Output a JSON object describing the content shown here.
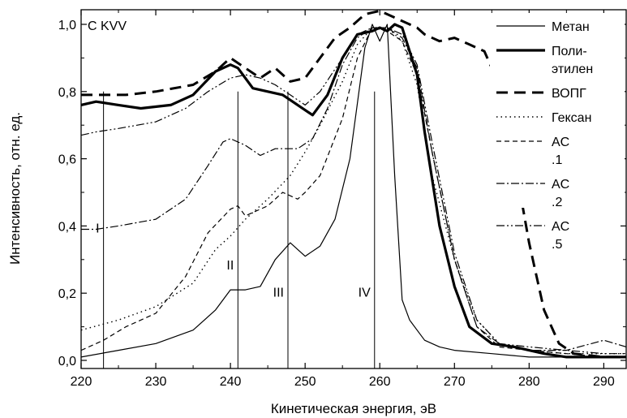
{
  "chart_data": {
    "type": "line",
    "title": "",
    "xlabel": "Кинетическая энергия, эВ",
    "ylabel": "Интенсивность, отн. ед.",
    "xlim": [
      220,
      293
    ],
    "ylim": [
      0,
      1.03
    ],
    "x_ticks": [
      220,
      230,
      240,
      250,
      260,
      270,
      280,
      290
    ],
    "x_tick_labels": [
      "220",
      "230",
      "240",
      "250",
      "260",
      "270",
      "280",
      "290"
    ],
    "y_ticks": [
      0.0,
      0.2,
      0.4,
      0.6,
      0.8,
      1.0
    ],
    "y_tick_labels": [
      "0,0",
      "0,2",
      "0,4",
      "0,6",
      "0,8",
      "1,0"
    ],
    "grid": false,
    "legend_position": "top-right",
    "corner_label": "C KVV",
    "annotations": [
      {
        "text": "I",
        "x": 223,
        "label_y": 0.38
      },
      {
        "text": "II",
        "x": 241,
        "label_y": 0.27
      },
      {
        "text": "III",
        "x": 247.7,
        "label_y": 0.19
      },
      {
        "text": "IV",
        "x": 259.3,
        "label_y": 0.19
      }
    ],
    "series": [
      {
        "name": "Метан",
        "style": "solid-thin",
        "x": [
          220,
          225,
          230,
          235,
          238,
          240,
          242,
          244,
          246,
          248,
          250,
          252,
          254,
          256,
          258,
          259,
          260,
          261,
          262,
          263,
          264,
          266,
          268,
          270,
          275,
          280,
          285,
          290,
          293
        ],
        "y": [
          0.01,
          0.03,
          0.05,
          0.09,
          0.15,
          0.21,
          0.21,
          0.22,
          0.3,
          0.35,
          0.31,
          0.34,
          0.42,
          0.6,
          0.93,
          1.0,
          0.95,
          1.0,
          0.55,
          0.18,
          0.12,
          0.06,
          0.04,
          0.03,
          0.02,
          0.01,
          0.01,
          0.01,
          0.01
        ]
      },
      {
        "name": "Поли- этилен",
        "style": "solid-thick",
        "x": [
          220,
          222,
          225,
          228,
          232,
          235,
          238,
          240,
          241,
          243,
          245,
          247,
          249,
          251,
          253,
          255,
          257,
          259,
          260,
          261,
          262,
          263,
          264,
          265,
          266,
          268,
          270,
          272,
          275,
          278,
          280,
          282,
          285,
          290,
          293
        ],
        "y": [
          0.76,
          0.77,
          0.76,
          0.75,
          0.76,
          0.79,
          0.86,
          0.88,
          0.87,
          0.81,
          0.8,
          0.79,
          0.76,
          0.73,
          0.79,
          0.9,
          0.97,
          0.98,
          0.99,
          0.98,
          1.0,
          0.99,
          0.92,
          0.85,
          0.68,
          0.4,
          0.22,
          0.1,
          0.05,
          0.04,
          0.03,
          0.02,
          0.01,
          0.01,
          0.01
        ]
      },
      {
        "name": "ВОПГ",
        "style": "dashed-thick",
        "x": [
          220,
          223,
          226,
          230,
          235,
          238,
          240,
          242,
          244,
          246,
          248,
          250,
          252,
          254,
          256,
          258,
          260,
          262,
          264,
          265,
          266,
          268,
          270,
          272,
          274,
          276,
          278,
          280,
          282,
          284,
          286,
          290,
          293
        ],
        "y": [
          0.79,
          0.79,
          0.79,
          0.8,
          0.82,
          0.86,
          0.9,
          0.87,
          0.84,
          0.87,
          0.83,
          0.84,
          0.9,
          0.96,
          0.99,
          1.03,
          1.04,
          1.02,
          1.0,
          0.99,
          0.97,
          0.95,
          0.96,
          0.94,
          0.92,
          0.82,
          0.6,
          0.35,
          0.15,
          0.05,
          0.02,
          0.01,
          0.01
        ]
      },
      {
        "name": "Гексан",
        "style": "dotted",
        "x": [
          220,
          225,
          230,
          235,
          238,
          240,
          242,
          245,
          248,
          250,
          252,
          255,
          257,
          259,
          261,
          263,
          265,
          267,
          270,
          273,
          276,
          280,
          285,
          290,
          293
        ],
        "y": [
          0.09,
          0.12,
          0.16,
          0.23,
          0.33,
          0.37,
          0.42,
          0.48,
          0.55,
          0.62,
          0.7,
          0.83,
          0.94,
          0.99,
          0.99,
          0.95,
          0.82,
          0.55,
          0.3,
          0.12,
          0.05,
          0.03,
          0.02,
          0.02,
          0.02
        ]
      },
      {
        "name": "AC .1",
        "style": "dashed-thin",
        "x": [
          220,
          223,
          226,
          230,
          234,
          237,
          240,
          241,
          242,
          243,
          245,
          247,
          249,
          250,
          252,
          255,
          257,
          259,
          261,
          263,
          265,
          267,
          270,
          273,
          276,
          280,
          285,
          290,
          293
        ],
        "y": [
          0.03,
          0.06,
          0.1,
          0.14,
          0.25,
          0.38,
          0.45,
          0.46,
          0.43,
          0.44,
          0.46,
          0.5,
          0.48,
          0.5,
          0.55,
          0.72,
          0.9,
          0.99,
          0.98,
          0.95,
          0.85,
          0.62,
          0.3,
          0.1,
          0.04,
          0.03,
          0.02,
          0.01,
          0.01
        ]
      },
      {
        "name": "AC .2",
        "style": "dashdot",
        "x": [
          220,
          222,
          225,
          230,
          234,
          237,
          239,
          240,
          241,
          242,
          244,
          246,
          247,
          249,
          251,
          253,
          255,
          257,
          259,
          261,
          263,
          265,
          267,
          270,
          273,
          276,
          280,
          285,
          290,
          293
        ],
        "y": [
          0.39,
          0.39,
          0.4,
          0.42,
          0.48,
          0.58,
          0.65,
          0.66,
          0.65,
          0.64,
          0.61,
          0.63,
          0.63,
          0.63,
          0.66,
          0.75,
          0.88,
          0.96,
          0.99,
          0.99,
          0.96,
          0.87,
          0.62,
          0.3,
          0.1,
          0.05,
          0.03,
          0.03,
          0.06,
          0.04
        ]
      },
      {
        "name": "AC .5",
        "style": "dashdotdot",
        "x": [
          220,
          222,
          225,
          230,
          234,
          237,
          240,
          242,
          244,
          246,
          248,
          250,
          252,
          255,
          257,
          259,
          261,
          263,
          265,
          267,
          270,
          273,
          276,
          280,
          285,
          290,
          293
        ],
        "y": [
          0.67,
          0.68,
          0.69,
          0.71,
          0.75,
          0.8,
          0.84,
          0.85,
          0.84,
          0.82,
          0.79,
          0.76,
          0.8,
          0.9,
          0.97,
          0.99,
          0.99,
          0.97,
          0.88,
          0.65,
          0.32,
          0.12,
          0.05,
          0.04,
          0.03,
          0.02,
          0.02
        ]
      }
    ]
  }
}
